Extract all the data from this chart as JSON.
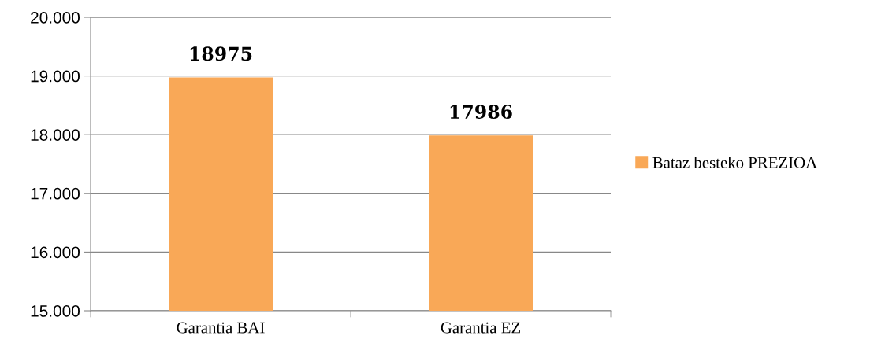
{
  "chart_data": {
    "type": "bar",
    "categories": [
      "Garantia BAI",
      "Garantia EZ"
    ],
    "series": [
      {
        "name": "Bataz besteko PREZIOA",
        "color": "#f9a857",
        "values": [
          18975,
          17986
        ]
      }
    ],
    "ylim": [
      15000,
      20000
    ],
    "yticks": [
      {
        "value": 15000,
        "label": "15.000"
      },
      {
        "value": 16000,
        "label": "16.000"
      },
      {
        "value": 17000,
        "label": "17.000"
      },
      {
        "value": 18000,
        "label": "18.000"
      },
      {
        "value": 19000,
        "label": "19.000"
      },
      {
        "value": 20000,
        "label": "20.000"
      }
    ],
    "grid": "y",
    "legend": "right",
    "data_labels": true
  }
}
